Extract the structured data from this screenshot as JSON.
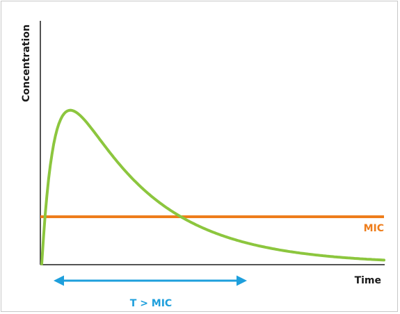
{
  "chart_data": {
    "type": "line",
    "ylabel": "Concentration",
    "xlabel": "Time",
    "grid": false,
    "series": [
      {
        "name": "",
        "color": "#8cc63e",
        "shape": "concentration-time curve rising to a peak then decaying"
      }
    ],
    "threshold": {
      "label": "MIC",
      "color": "#ee7d1b"
    },
    "interval": {
      "label": "T > MIC",
      "color": "#1e9fdc"
    }
  }
}
